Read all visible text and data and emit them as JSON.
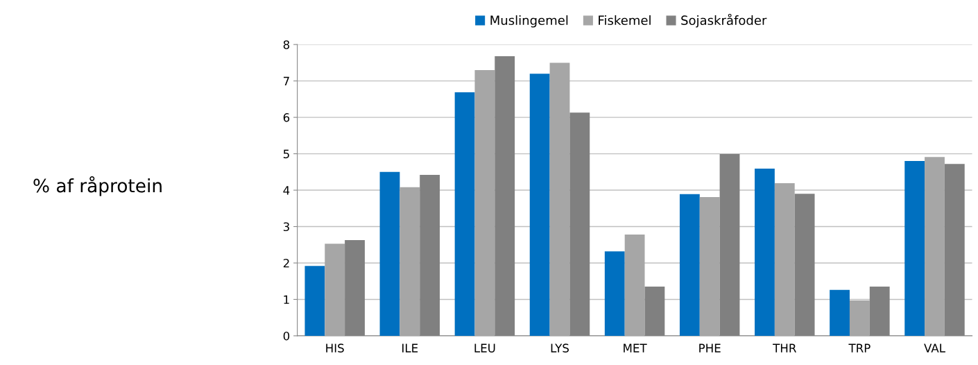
{
  "chart_data": {
    "type": "bar",
    "annotations": [
      "% af råprotein"
    ],
    "categories": [
      "HIS",
      "ILE",
      "LEU",
      "LYS",
      "MET",
      "PHE",
      "THR",
      "TRP",
      "VAL"
    ],
    "series": [
      {
        "name": "Muslingemel",
        "color": "#0070c0",
        "values": [
          1.92,
          4.5,
          6.69,
          7.2,
          2.32,
          3.89,
          4.59,
          1.26,
          4.8
        ]
      },
      {
        "name": "Fiskemel",
        "color": "#a6a6a6",
        "values": [
          2.53,
          4.08,
          7.3,
          7.5,
          2.78,
          3.81,
          4.19,
          0.97,
          4.91
        ]
      },
      {
        "name": "Sojaskråfoder",
        "color": "#808080",
        "values": [
          2.63,
          4.42,
          7.68,
          6.13,
          1.35,
          4.99,
          3.9,
          1.35,
          4.72
        ]
      }
    ],
    "ylim": [
      0,
      8
    ],
    "yticks": [
      0,
      1,
      2,
      3,
      4,
      5,
      6,
      7,
      8
    ],
    "grid": "y",
    "legend": "top"
  }
}
